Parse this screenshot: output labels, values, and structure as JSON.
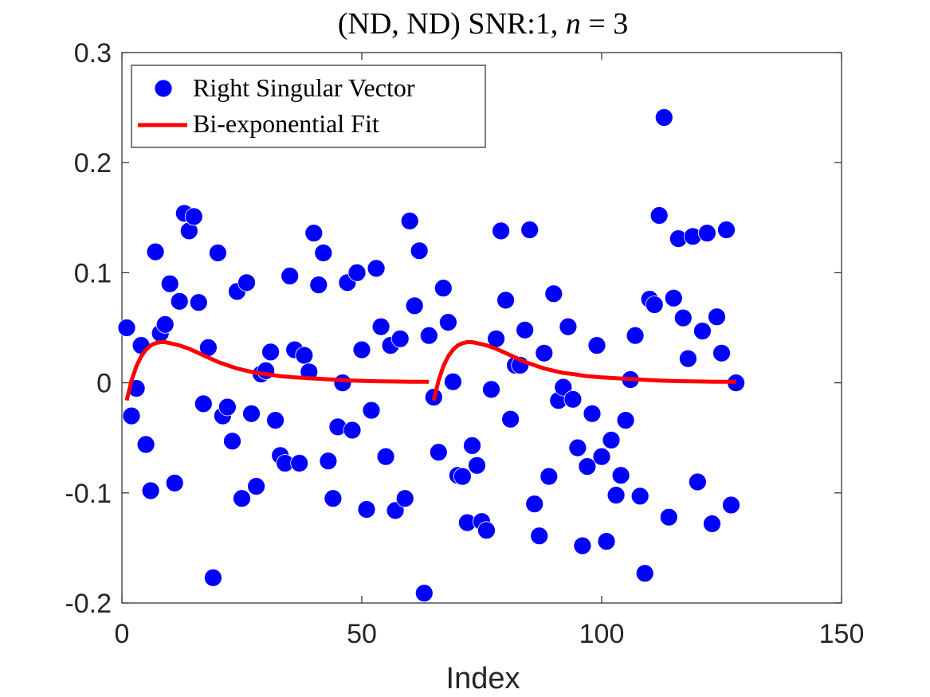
{
  "chart_data": {
    "type": "scatter",
    "title": "(ND, ND) SNR:1, n = 3",
    "title_parts": {
      "prefix": "(ND, ND) SNR:1, ",
      "var": "n",
      "suffix": " = 3"
    },
    "xlabel": "Index",
    "ylabel": "",
    "xlim": [
      0,
      150
    ],
    "ylim": [
      -0.2,
      0.3
    ],
    "xticks": [
      0,
      50,
      100,
      150
    ],
    "xtick_labels": [
      "0",
      "50",
      "100",
      "150"
    ],
    "yticks": [
      -0.2,
      -0.1,
      0,
      0.1,
      0.2,
      0.3
    ],
    "ytick_labels": [
      "-0.2",
      "-0.1",
      "0",
      "0.1",
      "0.2",
      "0.3"
    ],
    "grid": false,
    "legend_position": "top-left",
    "series": [
      {
        "name": "Right Singular Vector",
        "kind": "scatter",
        "color": "#0000ff",
        "x": [
          1,
          2,
          3,
          4,
          5,
          6,
          7,
          8,
          9,
          10,
          11,
          12,
          13,
          14,
          15,
          16,
          17,
          18,
          19,
          20,
          21,
          22,
          23,
          24,
          25,
          26,
          27,
          28,
          29,
          30,
          31,
          32,
          33,
          34,
          35,
          36,
          37,
          38,
          39,
          40,
          41,
          42,
          43,
          44,
          45,
          46,
          47,
          48,
          49,
          50,
          51,
          52,
          53,
          54,
          55,
          56,
          57,
          58,
          59,
          60,
          61,
          62,
          63,
          64,
          65,
          66,
          67,
          68,
          69,
          70,
          71,
          72,
          73,
          74,
          75,
          76,
          77,
          78,
          79,
          80,
          81,
          82,
          83,
          84,
          85,
          86,
          87,
          88,
          89,
          90,
          91,
          92,
          93,
          94,
          95,
          96,
          97,
          98,
          99,
          100,
          101,
          102,
          103,
          104,
          105,
          106,
          107,
          108,
          109,
          110,
          111,
          112,
          113,
          114,
          115,
          116,
          117,
          118,
          119,
          120,
          121,
          122,
          123,
          124,
          125,
          126,
          127,
          128
        ],
        "y": [
          0.05,
          -0.03,
          -0.005,
          0.034,
          -0.056,
          -0.098,
          0.119,
          0.045,
          0.053,
          0.09,
          -0.091,
          0.074,
          0.154,
          0.138,
          0.151,
          0.073,
          -0.019,
          0.032,
          -0.177,
          0.118,
          -0.03,
          -0.022,
          -0.053,
          0.083,
          -0.105,
          0.091,
          -0.028,
          -0.094,
          0.008,
          0.011,
          0.028,
          -0.034,
          -0.066,
          -0.073,
          0.097,
          0.03,
          -0.073,
          0.025,
          0.01,
          0.136,
          0.089,
          0.118,
          -0.071,
          -0.105,
          -0.04,
          0.0,
          0.091,
          -0.043,
          0.1,
          0.03,
          -0.115,
          -0.025,
          0.104,
          0.051,
          -0.067,
          0.034,
          -0.116,
          0.04,
          -0.105,
          0.147,
          0.07,
          0.12,
          -0.191,
          0.043,
          -0.013,
          -0.063,
          0.086,
          0.055,
          0.001,
          -0.084,
          -0.085,
          -0.127,
          -0.057,
          -0.075,
          -0.126,
          -0.134,
          -0.006,
          0.04,
          0.138,
          0.075,
          -0.033,
          0.016,
          0.016,
          0.048,
          0.139,
          -0.11,
          -0.139,
          0.027,
          -0.085,
          0.081,
          -0.016,
          -0.004,
          0.051,
          -0.015,
          -0.059,
          -0.148,
          -0.076,
          -0.028,
          0.034,
          -0.067,
          -0.144,
          -0.052,
          -0.102,
          -0.084,
          -0.034,
          0.003,
          0.043,
          -0.103,
          -0.173,
          0.076,
          0.071,
          0.152,
          0.241,
          -0.122,
          0.077,
          0.131,
          0.059,
          0.022,
          0.133,
          -0.09,
          0.047,
          0.136,
          -0.128,
          0.06,
          0.027,
          0.139,
          -0.111,
          0.0
        ]
      },
      {
        "name": "Bi-exponential Fit",
        "kind": "line",
        "color": "#ff0000",
        "segments": [
          {
            "x": [
              1,
              2,
              3,
              4,
              5,
              6,
              7,
              8,
              9,
              10,
              12,
              14,
              16,
              18,
              20,
              22,
              24,
              26,
              28,
              30,
              33,
              36,
              40,
              44,
              48,
              52,
              56,
              60,
              64
            ],
            "y": [
              -0.016,
              0.002,
              0.015,
              0.024,
              0.03,
              0.034,
              0.036,
              0.037,
              0.037,
              0.036,
              0.034,
              0.031,
              0.027,
              0.023,
              0.019,
              0.016,
              0.013,
              0.011,
              0.009,
              0.008,
              0.006,
              0.005,
              0.004,
              0.003,
              0.002,
              0.0015,
              0.0012,
              0.001,
              0.001
            ]
          },
          {
            "x": [
              65,
              66,
              67,
              68,
              69,
              70,
              71,
              72,
              73,
              74,
              76,
              78,
              80,
              82,
              84,
              86,
              88,
              90,
              92,
              94,
              97,
              100,
              104,
              108,
              112,
              116,
              120,
              124,
              128
            ],
            "y": [
              -0.016,
              0.002,
              0.015,
              0.024,
              0.03,
              0.034,
              0.036,
              0.037,
              0.037,
              0.036,
              0.034,
              0.031,
              0.027,
              0.023,
              0.019,
              0.016,
              0.013,
              0.011,
              0.009,
              0.008,
              0.006,
              0.005,
              0.004,
              0.003,
              0.002,
              0.0015,
              0.0012,
              0.001,
              0.001
            ]
          }
        ]
      }
    ]
  }
}
